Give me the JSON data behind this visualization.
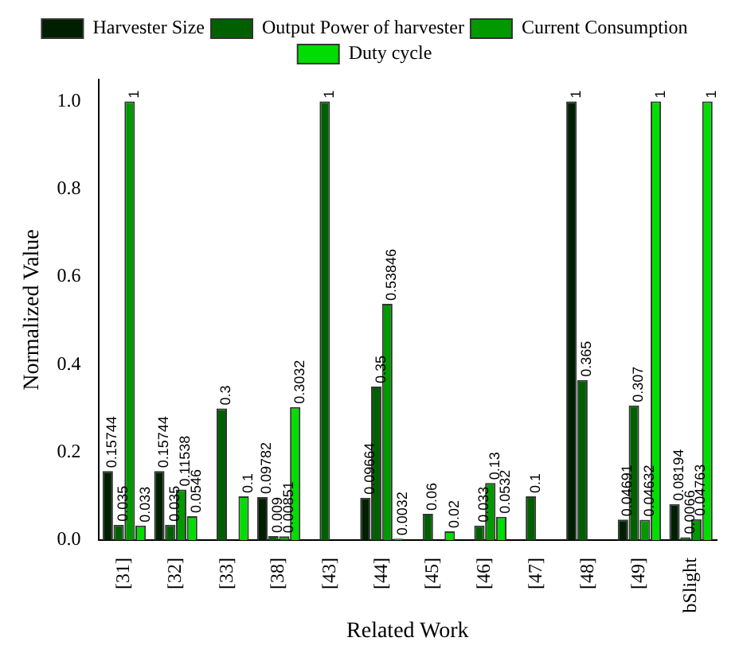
{
  "chart_data": {
    "type": "bar",
    "xlabel": "Related Work",
    "ylabel": "Normalized Value",
    "categories": [
      "[31]",
      "[32]",
      "[33]",
      "[38]",
      "[43]",
      "[44]",
      "[45]",
      "[46]",
      "[47]",
      "[48]",
      "[49]",
      "bSlight"
    ],
    "series": [
      {
        "name": "Harvester Size",
        "color": "#001f00",
        "values": [
          0.15744,
          0.15744,
          null,
          0.09782,
          null,
          0.09664,
          null,
          null,
          null,
          1,
          0.04691,
          0.08194
        ]
      },
      {
        "name": "Output Power of harvester",
        "color": "#006000",
        "values": [
          0.035,
          0.035,
          0.3,
          0.009,
          1,
          0.35,
          0.06,
          0.033,
          0.1,
          0.365,
          0.307,
          0.0066
        ]
      },
      {
        "name": "Current Consumption",
        "color": "#009900",
        "values": [
          1,
          0.11538,
          null,
          0.00851,
          null,
          0.53846,
          null,
          0.13,
          null,
          null,
          0.04632,
          0.04763
        ]
      },
      {
        "name": "Duty cycle",
        "color": "#00dd00",
        "values": [
          0.033,
          0.0546,
          0.1,
          0.3032,
          null,
          0.0032,
          0.02,
          0.0532,
          null,
          null,
          1,
          1
        ]
      }
    ],
    "ylim": [
      0,
      1.05
    ],
    "yticks": [
      {
        "value": 0,
        "label": "0.0"
      },
      0.2,
      0.4,
      0.6,
      0.8,
      {
        "value": 1,
        "label": "1.0"
      }
    ],
    "grid": false,
    "legend": "top",
    "data_labels": true
  }
}
